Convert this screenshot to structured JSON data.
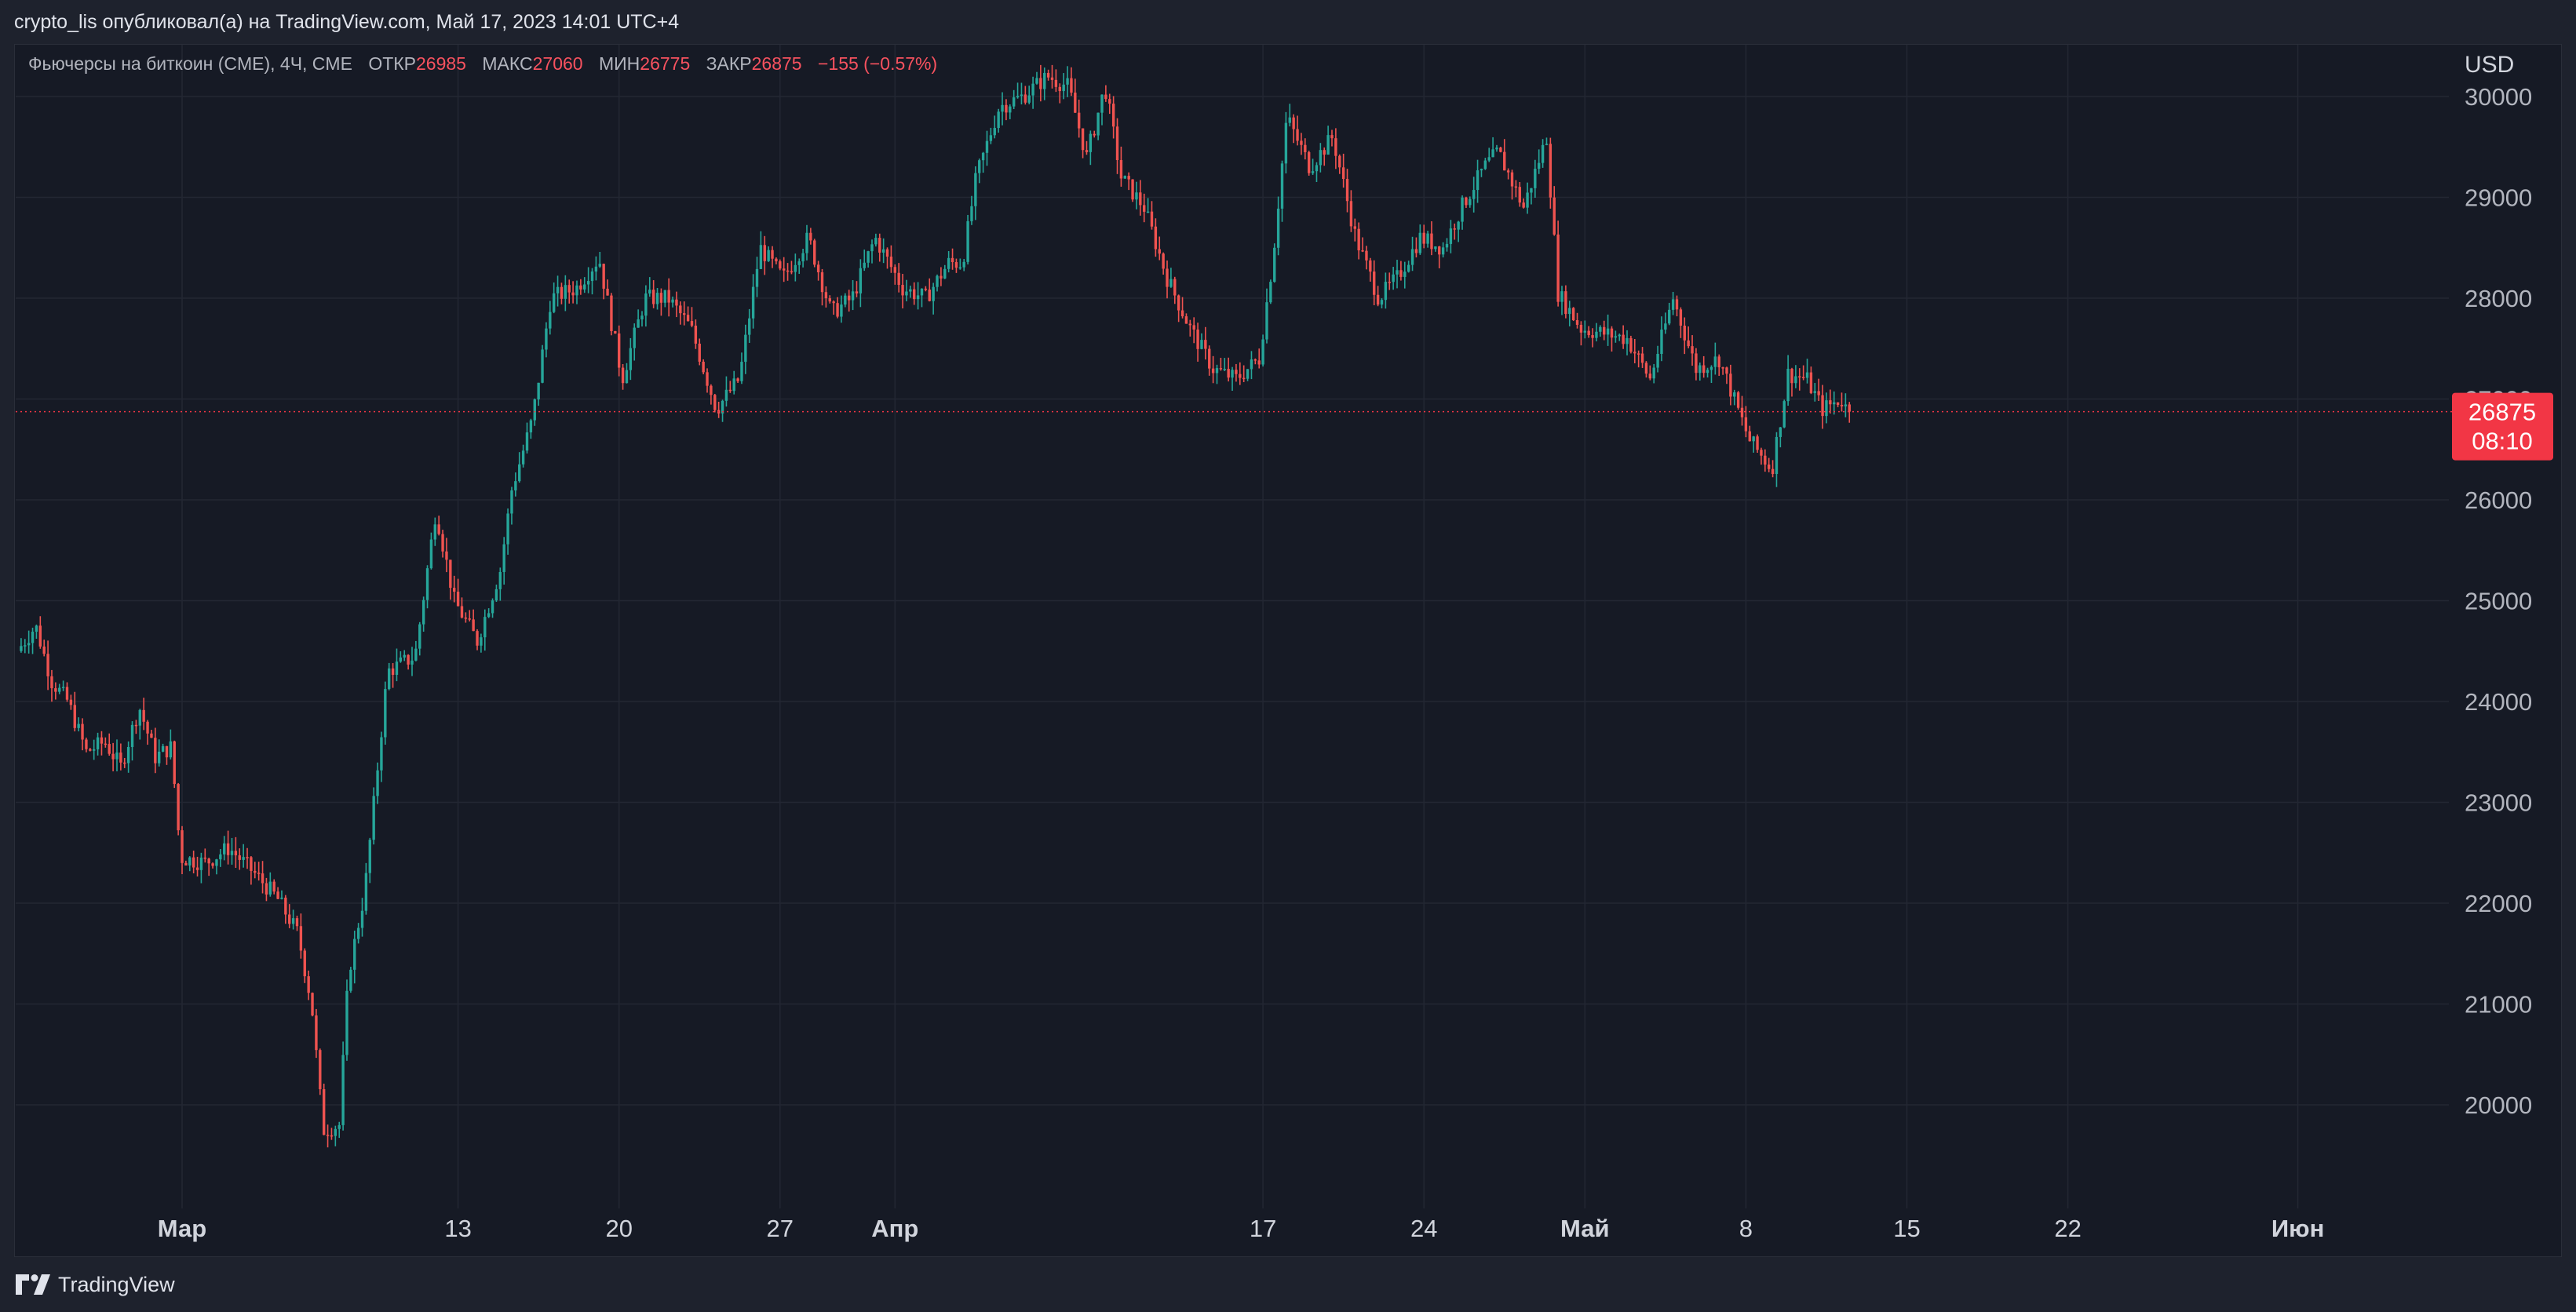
{
  "header": {
    "publish_line": "crypto_lis опубликовал(а) на TradingView.com, Май 17, 2023 14:01 UTC+4"
  },
  "legend": {
    "symbol": "Фьючерсы на биткоин (CME), 4Ч, CME",
    "open_label": "ОТКР",
    "open_value": "26985",
    "high_label": "МАКС",
    "high_value": "27060",
    "low_label": "МИН",
    "low_value": "26775",
    "close_label": "ЗАКР",
    "close_value": "26875",
    "change": "−155 (−0.57%)"
  },
  "footer": {
    "brand": "TradingView"
  },
  "chart_data": {
    "type": "candlestick",
    "currency": "USD",
    "y_ticks": [
      "20000",
      "21000",
      "22000",
      "23000",
      "24000",
      "25000",
      "26000",
      "27000",
      "28000",
      "29000",
      "30000"
    ],
    "ylim": [
      19000,
      30300
    ],
    "x_ticks": [
      {
        "label": "Мар",
        "day": 0,
        "bold": true
      },
      {
        "label": "13",
        "day": 12,
        "bold": false
      },
      {
        "label": "20",
        "day": 19,
        "bold": false
      },
      {
        "label": "27",
        "day": 26,
        "bold": false
      },
      {
        "label": "Апр",
        "day": 31,
        "bold": true
      },
      {
        "label": "17",
        "day": 47,
        "bold": false
      },
      {
        "label": "24",
        "day": 54,
        "bold": false
      },
      {
        "label": "Май",
        "day": 61,
        "bold": true
      },
      {
        "label": "8",
        "day": 68,
        "bold": false
      },
      {
        "label": "15",
        "day": 75,
        "bold": false
      },
      {
        "label": "22",
        "day": 82,
        "bold": false
      },
      {
        "label": "Июн",
        "day": 92,
        "bold": true
      }
    ],
    "last_price": "26875",
    "countdown": "08:10",
    "colors": {
      "up": "#26a69a",
      "down": "#ef5350",
      "badge": "#f23645",
      "grid": "#232733"
    },
    "anchors": [
      [
        -7,
        24500
      ],
      [
        -6.2,
        24750
      ],
      [
        -5.5,
        24200
      ],
      [
        -4.8,
        24000
      ],
      [
        -4,
        23500
      ],
      [
        -3.2,
        23600
      ],
      [
        -2.5,
        23350
      ],
      [
        -1.7,
        23950
      ],
      [
        -1,
        23450
      ],
      [
        -0.3,
        23550
      ],
      [
        0.1,
        22450
      ],
      [
        1.2,
        22400
      ],
      [
        2.2,
        22550
      ],
      [
        3.3,
        22300
      ],
      [
        4.3,
        22050
      ],
      [
        5.2,
        21700
      ],
      [
        5.8,
        21000
      ],
      [
        6.3,
        19750
      ],
      [
        7.0,
        19800
      ],
      [
        7.4,
        21300
      ],
      [
        8.1,
        22100
      ],
      [
        9.1,
        24300
      ],
      [
        10.3,
        24450
      ],
      [
        11.2,
        25900
      ],
      [
        12,
        25000
      ],
      [
        13.0,
        24600
      ],
      [
        14.0,
        25300
      ],
      [
        14.5,
        26100
      ],
      [
        15.4,
        26800
      ],
      [
        16.2,
        28000
      ],
      [
        17.3,
        28100
      ],
      [
        18.3,
        28400
      ],
      [
        19.3,
        27200
      ],
      [
        20.3,
        28000
      ],
      [
        21.3,
        28000
      ],
      [
        22.3,
        27700
      ],
      [
        23.4,
        26900
      ],
      [
        24.4,
        27200
      ],
      [
        25.3,
        28500
      ],
      [
        26.3,
        28200
      ],
      [
        27.4,
        28600
      ],
      [
        28.4,
        27850
      ],
      [
        29.3,
        28000
      ],
      [
        30.3,
        28600
      ],
      [
        31.5,
        28100
      ],
      [
        32.5,
        28000
      ],
      [
        33.5,
        28350
      ],
      [
        34.1,
        28350
      ],
      [
        34.7,
        29200
      ],
      [
        35.7,
        29900
      ],
      [
        36.7,
        30000
      ],
      [
        37.8,
        30200
      ],
      [
        38.7,
        30100
      ],
      [
        39.5,
        29400
      ],
      [
        40.3,
        30100
      ],
      [
        41.0,
        29200
      ],
      [
        42.0,
        28900
      ],
      [
        43.0,
        28200
      ],
      [
        44.0,
        27700
      ],
      [
        45.0,
        27300
      ],
      [
        46.0,
        27200
      ],
      [
        47.0,
        27400
      ],
      [
        47.6,
        28400
      ],
      [
        48.2,
        29800
      ],
      [
        49.2,
        29300
      ],
      [
        50.2,
        29600
      ],
      [
        51.2,
        28600
      ],
      [
        52.2,
        28000
      ],
      [
        53.0,
        28200
      ],
      [
        54.0,
        28600
      ],
      [
        55.0,
        28500
      ],
      [
        55.8,
        28900
      ],
      [
        56.8,
        29300
      ],
      [
        57.4,
        29450
      ],
      [
        58.5,
        28900
      ],
      [
        59.5,
        29600
      ],
      [
        60.0,
        28050
      ],
      [
        61.0,
        27700
      ],
      [
        62.0,
        27650
      ],
      [
        63.0,
        27600
      ],
      [
        64.0,
        27200
      ],
      [
        65.0,
        28000
      ],
      [
        66.0,
        27300
      ],
      [
        67.0,
        27400
      ],
      [
        68.3,
        26600
      ],
      [
        69.3,
        26300
      ],
      [
        70.0,
        27250
      ],
      [
        70.8,
        27200
      ],
      [
        71.5,
        26900
      ],
      [
        72.3,
        27000
      ],
      [
        72.6,
        26875
      ]
    ]
  }
}
